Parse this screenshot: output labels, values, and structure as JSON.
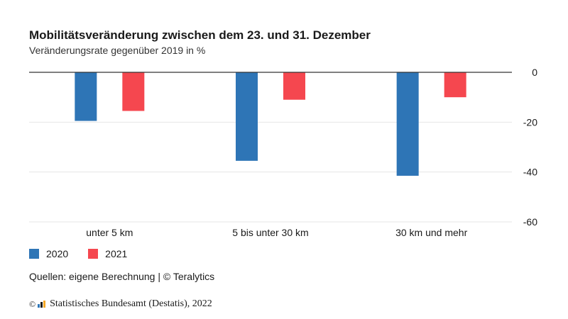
{
  "title": "Mobilitätsveränderung zwischen dem 23. und 31. Dezember",
  "subtitle": "Veränderungsrate gegenüber 2019 in %",
  "source": "Quellen: eigene Berechnung | © Teralytics",
  "footer": {
    "copyright_symbol": "©",
    "text": "Statistisches Bundesamt (Destatis), 2022"
  },
  "colors": {
    "series_2020": "#2e75b6",
    "series_2021": "#f5474f",
    "grid": "#e6e6e6",
    "baseline": "#333333"
  },
  "chart_data": {
    "type": "bar",
    "categories": [
      "unter 5 km",
      "5 bis unter 30 km",
      "30 km und mehr"
    ],
    "series": [
      {
        "name": "2020",
        "values": [
          -19.5,
          -35.5,
          -41.5
        ]
      },
      {
        "name": "2021",
        "values": [
          -15.5,
          -11,
          -10
        ]
      }
    ],
    "y_ticks": [
      0,
      -20,
      -40,
      -60
    ],
    "ylim": [
      -60,
      0
    ],
    "grid": true,
    "legend": "bottom-left",
    "axis_position": "right"
  }
}
